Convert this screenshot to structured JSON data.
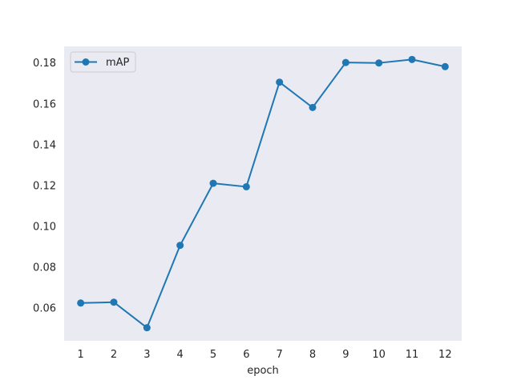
{
  "chart_data": {
    "type": "line",
    "title": "",
    "xlabel": "epoch",
    "ylabel": "",
    "x": [
      1,
      2,
      3,
      4,
      5,
      6,
      7,
      8,
      9,
      10,
      11,
      12
    ],
    "series": [
      {
        "name": "mAP",
        "color": "#1f77b4",
        "marker": "circle",
        "values": [
          0.0623,
          0.0627,
          0.0502,
          0.0905,
          0.1209,
          0.1192,
          0.1704,
          0.158,
          0.18,
          0.1798,
          0.1815,
          0.178
        ]
      }
    ],
    "xticks": [
      "1",
      "2",
      "3",
      "4",
      "5",
      "6",
      "7",
      "8",
      "9",
      "10",
      "11",
      "12"
    ],
    "yticks": [
      0.06,
      0.08,
      0.1,
      0.12,
      0.14,
      0.16,
      0.18
    ],
    "ytick_labels": [
      "0.06",
      "0.08",
      "0.10",
      "0.12",
      "0.14",
      "0.16",
      "0.18"
    ],
    "xlim": [
      0.5,
      12.5
    ],
    "ylim": [
      0.0438,
      0.1879
    ],
    "grid": false,
    "legend_position": "upper-left",
    "background_color": "#eaeaf2"
  }
}
